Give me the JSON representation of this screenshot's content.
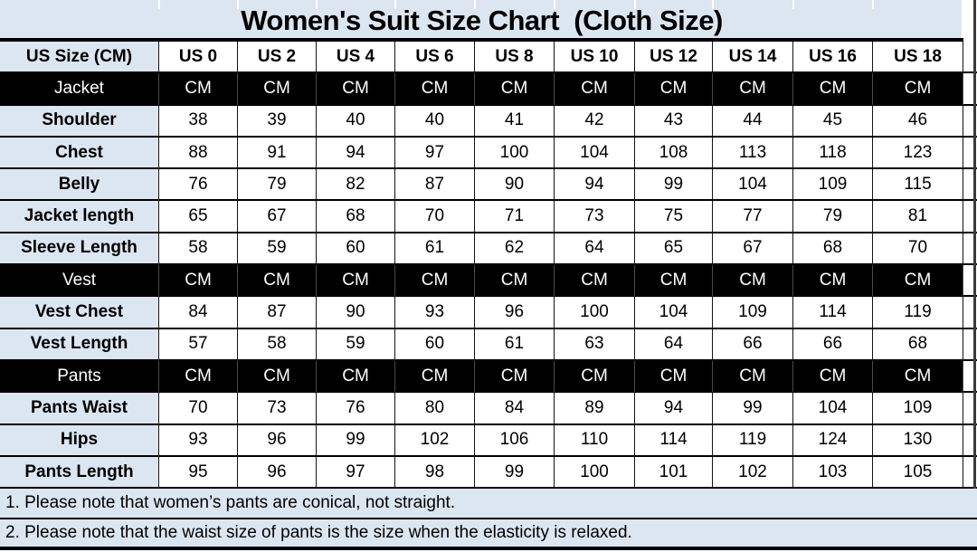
{
  "title": "Women's Suit Size Chart  (Cloth Size)",
  "chart_data": {
    "type": "table",
    "title": "Women's Suit Size Chart  (Cloth Size)",
    "corner_header": "US Size (CM)",
    "columns": [
      "US 0",
      "US 2",
      "US 4",
      "US 6",
      "US 8",
      "US 10",
      "US 12",
      "US 14",
      "US 16",
      "US 18"
    ],
    "sections": [
      {
        "name": "Jacket",
        "unit": "CM",
        "rows": [
          {
            "label": "Shoulder",
            "values": [
              38,
              39,
              40,
              40,
              41,
              42,
              43,
              44,
              45,
              46
            ]
          },
          {
            "label": "Chest",
            "values": [
              88,
              91,
              94,
              97,
              100,
              104,
              108,
              113,
              118,
              123
            ]
          },
          {
            "label": "Belly",
            "values": [
              76,
              79,
              82,
              87,
              90,
              94,
              99,
              104,
              109,
              115
            ]
          },
          {
            "label": "Jacket length",
            "values": [
              65,
              67,
              68,
              70,
              71,
              73,
              75,
              77,
              79,
              81
            ]
          },
          {
            "label": "Sleeve Length",
            "values": [
              58,
              59,
              60,
              61,
              62,
              64,
              65,
              67,
              68,
              70
            ]
          }
        ]
      },
      {
        "name": "Vest",
        "unit": "CM",
        "rows": [
          {
            "label": "Vest Chest",
            "values": [
              84,
              87,
              90,
              93,
              96,
              100,
              104,
              109,
              114,
              119
            ]
          },
          {
            "label": "Vest Length",
            "values": [
              57,
              58,
              59,
              60,
              61,
              63,
              64,
              66,
              66,
              68
            ]
          }
        ]
      },
      {
        "name": "Pants",
        "unit": "CM",
        "rows": [
          {
            "label": "Pants Waist",
            "values": [
              70,
              73,
              76,
              80,
              84,
              89,
              94,
              99,
              104,
              109
            ]
          },
          {
            "label": "Hips",
            "values": [
              93,
              96,
              99,
              102,
              106,
              110,
              114,
              119,
              124,
              130
            ]
          },
          {
            "label": "Pants Length",
            "values": [
              95,
              96,
              97,
              98,
              99,
              100,
              101,
              102,
              103,
              105
            ]
          }
        ]
      }
    ],
    "notes": [
      "1. Please note that women’s pants are conical, not straight.",
      "2. Please note that the waist size of pants is the size when the elasticity is relaxed."
    ]
  },
  "colors": {
    "band_bg": "#dce6f1",
    "section_bg": "#000000",
    "section_text": "#ffffff",
    "cell_bg": "#ffffff",
    "border": "#000000"
  }
}
